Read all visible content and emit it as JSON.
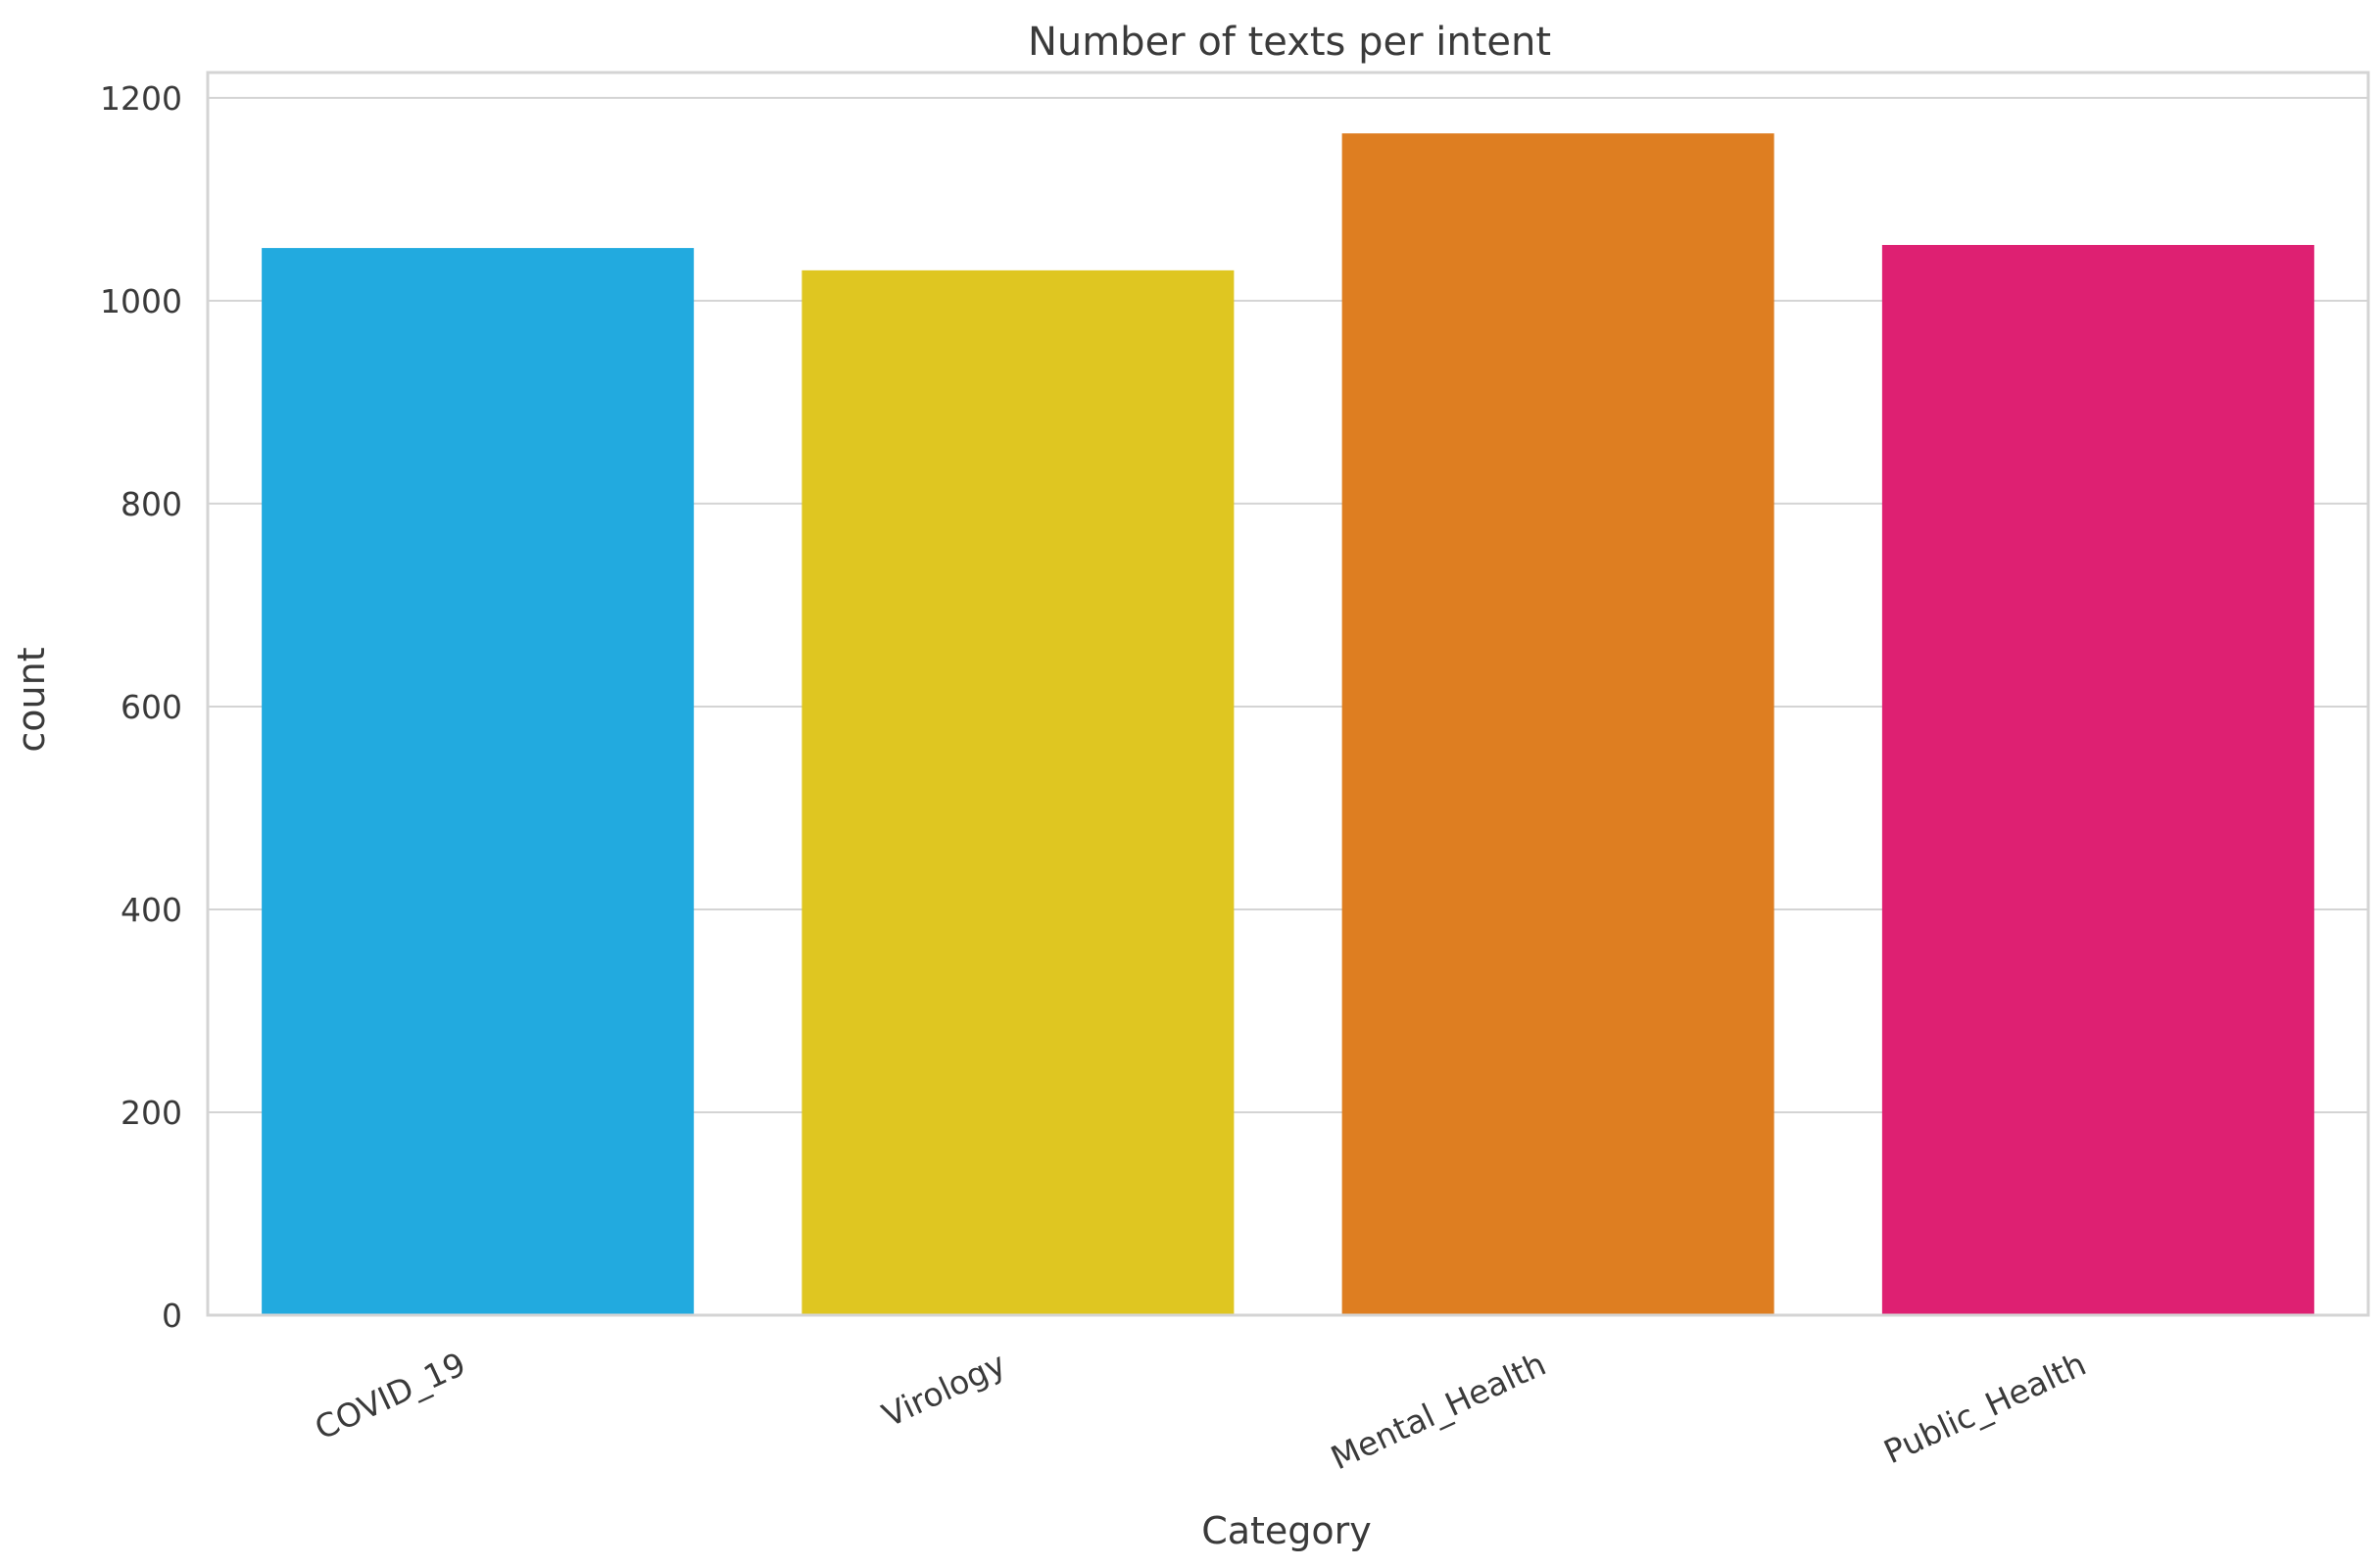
{
  "chart_data": {
    "type": "bar",
    "title": "Number of texts per intent",
    "xlabel": "Category",
    "ylabel": "count",
    "categories": [
      "COVID_19",
      "Virology",
      "Mental_Health",
      "Public_Health"
    ],
    "values": [
      1052,
      1030,
      1165,
      1055
    ],
    "colors": [
      "#22aadf",
      "#dfc621",
      "#de7e21",
      "#de2072"
    ],
    "ylim": [
      0,
      1225
    ],
    "yticks": [
      0,
      200,
      400,
      600,
      800,
      1000,
      1200
    ],
    "grid": true,
    "legend": "none"
  }
}
